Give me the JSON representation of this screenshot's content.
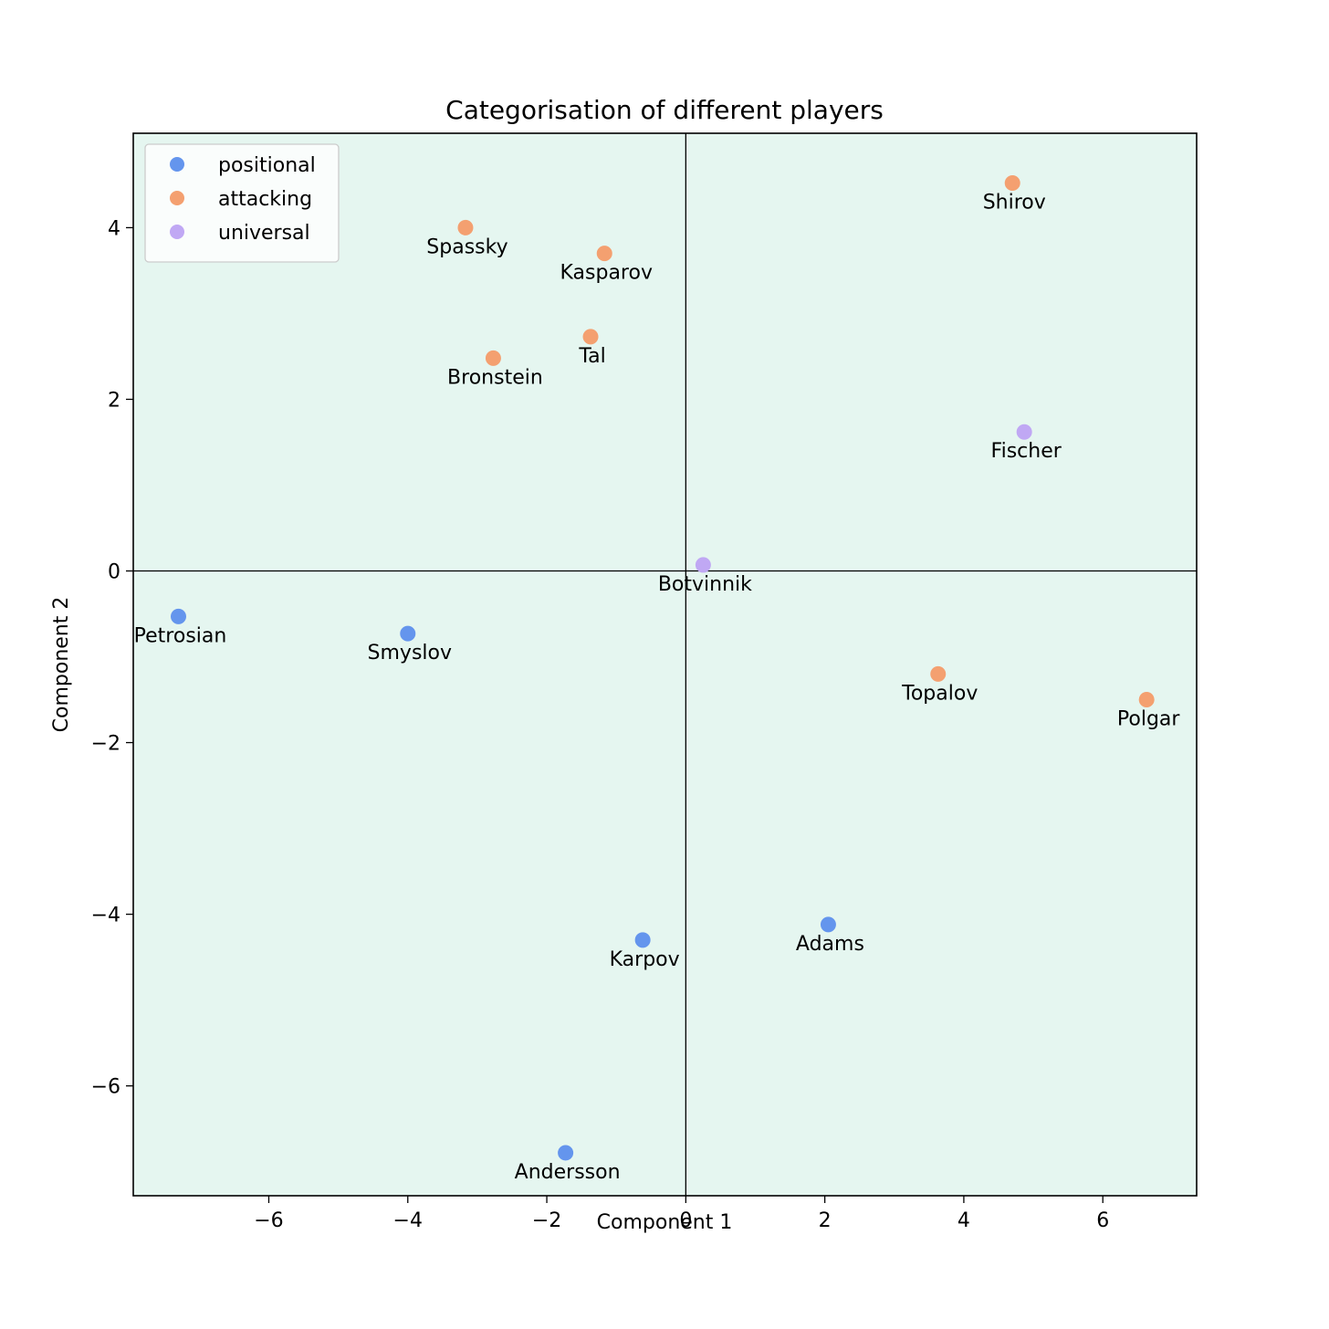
{
  "chart_data": {
    "type": "scatter",
    "title": "Categorisation of different players",
    "xlabel": "Component 1",
    "ylabel": "Component 2",
    "xlim": [
      -7.95,
      7.35
    ],
    "ylim": [
      -7.28,
      5.1
    ],
    "xticks": [
      -6,
      -4,
      -2,
      0,
      2,
      4,
      6
    ],
    "yticks": [
      -6,
      -4,
      -2,
      0,
      2,
      4
    ],
    "tick_labels_x": [
      "−6",
      "−4",
      "−2",
      "0",
      "2",
      "4",
      "6"
    ],
    "tick_labels_y": [
      "−6",
      "−4",
      "−2",
      "0",
      "2",
      "4"
    ],
    "grid": false,
    "axis_lines_at_zero": true,
    "background_color": "#e5f6f0",
    "legend_position": "top-left",
    "series": [
      {
        "name": "positional",
        "color": "#6495ed",
        "points": [
          {
            "label": "Petrosian",
            "x": -7.3,
            "y": -0.53
          },
          {
            "label": "Smyslov",
            "x": -4.0,
            "y": -0.73
          },
          {
            "label": "Karpov",
            "x": -0.62,
            "y": -4.3
          },
          {
            "label": "Adams",
            "x": 2.05,
            "y": -4.12
          },
          {
            "label": "Andersson",
            "x": -1.73,
            "y": -6.78
          }
        ]
      },
      {
        "name": "attacking",
        "color": "#f4a070",
        "points": [
          {
            "label": "Spassky",
            "x": -3.17,
            "y": 4.0
          },
          {
            "label": "Kasparov",
            "x": -1.17,
            "y": 3.7
          },
          {
            "label": "Tal",
            "x": -1.37,
            "y": 2.73
          },
          {
            "label": "Bronstein",
            "x": -2.77,
            "y": 2.48
          },
          {
            "label": "Shirov",
            "x": 4.7,
            "y": 4.52
          },
          {
            "label": "Topalov",
            "x": 3.63,
            "y": -1.2
          },
          {
            "label": "Polgar",
            "x": 6.63,
            "y": -1.5
          }
        ]
      },
      {
        "name": "universal",
        "color": "#c0a8f4",
        "points": [
          {
            "label": "Fischer",
            "x": 4.87,
            "y": 1.62
          },
          {
            "label": "Botvinnik",
            "x": 0.25,
            "y": 0.07
          }
        ]
      }
    ]
  }
}
